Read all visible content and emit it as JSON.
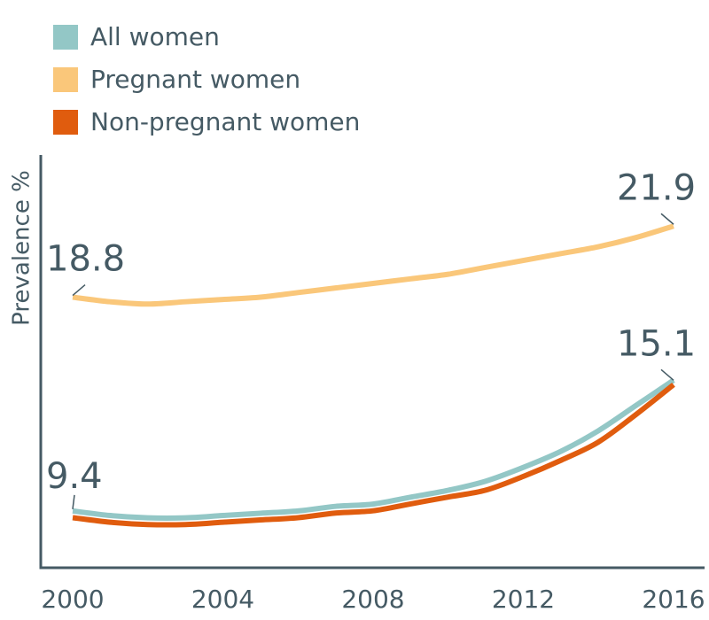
{
  "chart_data": {
    "type": "line",
    "title": "",
    "xlabel": "",
    "ylabel": "Prevalence %",
    "x": [
      2000,
      2001,
      2002,
      2003,
      2004,
      2005,
      2006,
      2007,
      2008,
      2009,
      2010,
      2011,
      2012,
      2013,
      2014,
      2015,
      2016
    ],
    "xticks": [
      2000,
      2004,
      2008,
      2012,
      2016
    ],
    "xlim": [
      2000,
      2016
    ],
    "ylim": [
      7,
      25
    ],
    "grid": false,
    "legend_position": "top-left",
    "series": [
      {
        "name": "All women",
        "color": "#93c7c6",
        "values": [
          9.4,
          9.2,
          9.1,
          9.1,
          9.2,
          9.3,
          9.4,
          9.6,
          9.7,
          10.0,
          10.3,
          10.7,
          11.3,
          12.0,
          12.9,
          14.0,
          15.1
        ]
      },
      {
        "name": "Pregnant women",
        "color": "#fac77a",
        "values": [
          18.8,
          18.6,
          18.5,
          18.6,
          18.7,
          18.8,
          19.0,
          19.2,
          19.4,
          19.6,
          19.8,
          20.1,
          20.4,
          20.7,
          21.0,
          21.4,
          21.9
        ]
      },
      {
        "name": "Non-pregnant women",
        "color": "#e05c0e",
        "values": [
          9.3,
          9.1,
          9.0,
          9.0,
          9.1,
          9.2,
          9.3,
          9.5,
          9.6,
          9.9,
          10.2,
          10.5,
          11.1,
          11.8,
          12.6,
          13.8,
          15.1
        ]
      }
    ],
    "data_labels": [
      {
        "series": "Pregnant women",
        "x": 2000,
        "value": "18.8"
      },
      {
        "series": "Pregnant women",
        "x": 2016,
        "value": "21.9"
      },
      {
        "series": "All women",
        "x": 2000,
        "value": "9.4"
      },
      {
        "series": "All women",
        "x": 2016,
        "value": "15.1"
      }
    ]
  }
}
